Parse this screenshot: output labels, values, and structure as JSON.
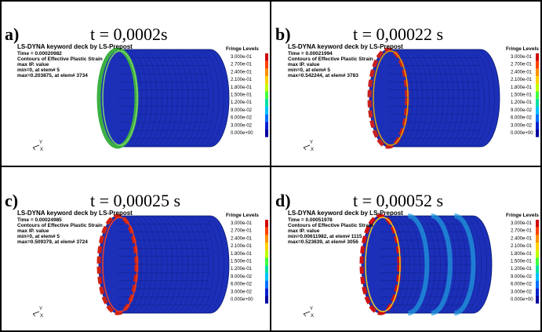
{
  "panels": [
    {
      "label": "a)",
      "time": "t = 0,0002s",
      "header": [
        "LS-DYNA keyword deck by LS-Prepost",
        "Time = 0.00020982",
        "Contours of Effective Plastic Strain",
        "max IP. value",
        "min=0, at elem# 5",
        "max=0.203875, at elem# 3734"
      ],
      "fringe_title": "Fringe Levels",
      "fringe_levels": [
        "3.000e-01",
        "2.700e-01",
        "2.400e-01",
        "2.100e-01",
        "1.800e-01",
        "1.500e-01",
        "1.200e-01",
        "9.000e-02",
        "6.000e-02",
        "3.000e-02",
        "0.000e+00"
      ],
      "axes": [
        "Y",
        "X"
      ]
    },
    {
      "label": "b)",
      "time": "t = 0,00022 s",
      "header": [
        "LS-DYNA keyword deck by LS-Prepost",
        "Time = 0.00021994",
        "Contours of Effective Plastic Strain",
        "max IP. value",
        "min=0, at elem# 5",
        "max=0.542244, at elem# 3783"
      ],
      "fringe_title": "Fringe Levels",
      "fringe_levels": [
        "3.000e-01",
        "2.700e-01",
        "2.400e-01",
        "2.100e-01",
        "1.800e-01",
        "1.500e-01",
        "1.200e-01",
        "9.000e-02",
        "6.000e-02",
        "3.000e-02",
        "0.000e+00"
      ],
      "axes": [
        "Y",
        "X"
      ]
    },
    {
      "label": "c)",
      "time": "t = 0,00025 s",
      "header": [
        "LS-DYNA keyword deck by LS-Prepost",
        "Time = 0.00024985",
        "Contours of Effective Plastic Strain",
        "max IP. value",
        "min=0, at elem# 5",
        "max=0.509379, at elem# 3724"
      ],
      "fringe_title": "Fringe Levels",
      "fringe_levels": [
        "3.000e-01",
        "2.700e-01",
        "2.400e-01",
        "2.100e-01",
        "1.800e-01",
        "1.500e-01",
        "1.200e-01",
        "9.000e-02",
        "6.000e-02",
        "3.000e-02",
        "0.000e+00"
      ],
      "axes": [
        "Y",
        "X"
      ]
    },
    {
      "label": "d)",
      "time": "t  = 0,00052 s",
      "header": [
        "LS-DYNA keyword deck by LS-Prepost",
        "Time = 0.00051978",
        "Contours of Effective Plastic Strain",
        "max IP. value",
        "min=0.00611982, at elem# 1115",
        "max=0.523639, at elem# 3056"
      ],
      "fringe_title": "Fringe Levels",
      "fringe_levels": [
        "3.000e-01",
        "2.700e-01",
        "2.400e-01",
        "2.100e-01",
        "1.800e-01",
        "1.500e-01",
        "1.200e-01",
        "9.000e-02",
        "6.000e-02",
        "3.000e-02",
        "0.000e+00"
      ],
      "axes": [
        "Y",
        "X"
      ]
    }
  ]
}
